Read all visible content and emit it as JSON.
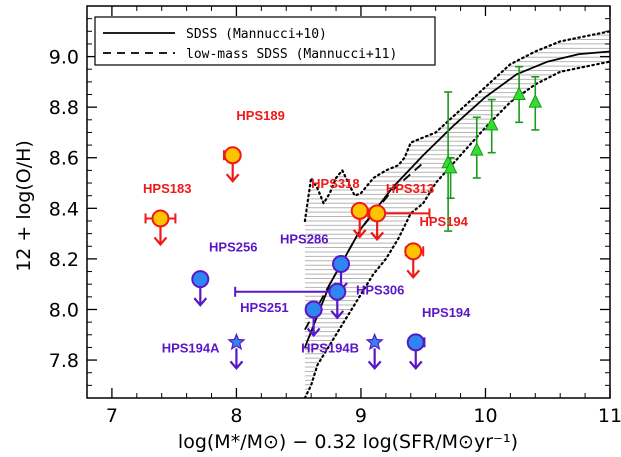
{
  "chart_data": {
    "type": "scatter",
    "xlabel": "log(M*/M⊙) − 0.32 log(SFR/M⊙yr⁻¹)",
    "ylabel": "12 + log(O/H)",
    "xlim": [
      6.8,
      11.0
    ],
    "ylim": [
      7.65,
      9.2
    ],
    "x_ticks": [
      "7",
      "8",
      "9",
      "10",
      "11"
    ],
    "y_ticks": [
      "7.8",
      "8.0",
      "8.2",
      "8.4",
      "8.6",
      "8.8",
      "9.0"
    ],
    "legend": {
      "position": "top-left",
      "entries": [
        "SDSS (Mannucci+10)",
        "low-mass SDSS (Mannucci+11)"
      ]
    },
    "colors": {
      "red_label": "#f01818",
      "purple_label": "#5a17c8",
      "orange_fill": "#ffc400",
      "blue_fill": "#2f86ee",
      "green": "#1a9a1a",
      "green_fill": "#33dd33",
      "hatch": "#b4b4b4"
    },
    "sdss_curve": {
      "x": [
        8.55,
        8.75,
        9.0,
        9.25,
        9.5,
        9.75,
        10.0,
        10.25,
        10.5,
        10.75,
        11.0
      ],
      "y": [
        7.85,
        8.1,
        8.32,
        8.48,
        8.61,
        8.73,
        8.84,
        8.93,
        8.98,
        9.01,
        9.02
      ]
    },
    "lowmass_curve": {
      "x": [
        8.55,
        8.75,
        9.0,
        9.25,
        9.5
      ],
      "y": [
        7.92,
        8.1,
        8.32,
        8.47,
        8.58
      ]
    },
    "upper_bound": {
      "x": [
        8.55,
        8.6,
        8.65,
        8.7,
        8.75,
        8.8,
        8.85,
        8.88,
        8.95,
        9.0,
        9.1,
        9.2,
        9.3,
        9.35,
        9.4,
        9.5,
        9.6,
        9.8,
        10.0,
        10.2,
        10.4,
        10.6,
        10.8,
        11.0
      ],
      "y": [
        8.35,
        8.52,
        8.48,
        8.42,
        8.46,
        8.52,
        8.55,
        8.52,
        8.45,
        8.46,
        8.52,
        8.55,
        8.57,
        8.6,
        8.66,
        8.68,
        8.7,
        8.79,
        8.88,
        8.97,
        9.02,
        9.06,
        9.08,
        9.1
      ]
    },
    "lower_bound": {
      "x": [
        8.55,
        8.6,
        8.65,
        8.7,
        8.8,
        8.9,
        9.0,
        9.1,
        9.2,
        9.3,
        9.4,
        9.5,
        9.6,
        9.8,
        10.0,
        10.2,
        10.4,
        10.6,
        10.8,
        11.0
      ],
      "y": [
        7.65,
        7.7,
        7.78,
        7.82,
        7.9,
        7.98,
        8.06,
        8.14,
        8.2,
        8.28,
        8.38,
        8.42,
        8.5,
        8.61,
        8.72,
        8.82,
        8.89,
        8.94,
        8.96,
        8.98
      ]
    },
    "green_points": [
      {
        "x": 9.7,
        "y": 8.58,
        "yerr_lo": 0.27,
        "yerr_hi": 0.28
      },
      {
        "x": 9.72,
        "y": 8.56,
        "yerr_lo": 0.12,
        "yerr_hi": 0.04
      },
      {
        "x": 9.93,
        "y": 8.63,
        "yerr_lo": 0.11,
        "yerr_hi": 0.13
      },
      {
        "x": 10.05,
        "y": 8.73,
        "yerr_lo": 0.11,
        "yerr_hi": 0.1
      },
      {
        "x": 10.27,
        "y": 8.85,
        "yerr_lo": 0.11,
        "yerr_hi": 0.11
      },
      {
        "x": 10.4,
        "y": 8.82,
        "yerr_lo": 0.11,
        "yerr_hi": 0.1
      }
    ],
    "series": [
      {
        "label": "HPS189",
        "color": "red",
        "kind": "circle",
        "x": 7.97,
        "y": 8.61,
        "xerr_lo": 0.07,
        "xerr_hi": 0.0,
        "limit": true,
        "label_x": 8.0,
        "label_y": 8.75
      },
      {
        "label": "HPS183",
        "color": "red",
        "kind": "circle",
        "x": 7.39,
        "y": 8.36,
        "xerr_lo": 0.12,
        "xerr_hi": 0.12,
        "limit": true,
        "label_x": 7.25,
        "label_y": 8.46
      },
      {
        "label": "HPS318",
        "color": "red",
        "kind": "circle",
        "x": 8.99,
        "y": 8.39,
        "xerr_lo": 0.05,
        "xerr_hi": 0.05,
        "limit": true,
        "label_x": 8.6,
        "label_y": 8.48
      },
      {
        "label": "HPS313",
        "color": "red",
        "kind": "circle",
        "x": 9.13,
        "y": 8.38,
        "xerr_lo": 0.07,
        "xerr_hi": 0.42,
        "limit": true,
        "label_x": 9.2,
        "label_y": 8.46
      },
      {
        "label": "HPS194",
        "color": "red",
        "kind": "circle",
        "x": 9.42,
        "y": 8.23,
        "xerr_lo": 0.06,
        "xerr_hi": 0.08,
        "limit": true,
        "label_x": 9.47,
        "label_y": 8.33
      },
      {
        "label": "HPS256",
        "color": "purple",
        "kind": "circle",
        "x": 7.71,
        "y": 8.12,
        "xerr_lo": 0.0,
        "xerr_hi": 0.0,
        "limit": true,
        "label_x": 7.78,
        "label_y": 8.23
      },
      {
        "label": "HPS286",
        "color": "purple",
        "kind": "circle",
        "x": 8.84,
        "y": 8.18,
        "xerr_lo": 0.0,
        "xerr_hi": 0.0,
        "limit": true,
        "label_x": 8.35,
        "label_y": 8.26
      },
      {
        "label": "HPS306",
        "color": "purple",
        "kind": "circle",
        "x": 8.81,
        "y": 8.07,
        "xerr_lo": 0.82,
        "xerr_hi": 0.0,
        "limit": true,
        "label_x": 8.96,
        "label_y": 8.06
      },
      {
        "label": "HPS251",
        "color": "purple",
        "kind": "circle",
        "x": 8.62,
        "y": 8.0,
        "xerr_lo": 0.0,
        "xerr_hi": 0.0,
        "limit": true,
        "label_x": 8.03,
        "label_y": 7.99
      },
      {
        "label": "HPS194",
        "color": "purple",
        "kind": "circle",
        "x": 9.44,
        "y": 7.87,
        "xerr_lo": 0.0,
        "xerr_hi": 0.07,
        "limit": true,
        "label_x": 9.49,
        "label_y": 7.97
      },
      {
        "label": "HPS194A",
        "color": "purple",
        "kind": "star",
        "x": 8.0,
        "y": 7.87,
        "xerr_lo": 0.0,
        "xerr_hi": 0.0,
        "limit": true,
        "label_x": 7.4,
        "label_y": 7.83
      },
      {
        "label": "HPS194B",
        "color": "purple",
        "kind": "star",
        "x": 9.11,
        "y": 7.87,
        "xerr_lo": 0.0,
        "xerr_hi": 0.0,
        "limit": true,
        "label_x": 8.52,
        "label_y": 7.83
      }
    ]
  }
}
